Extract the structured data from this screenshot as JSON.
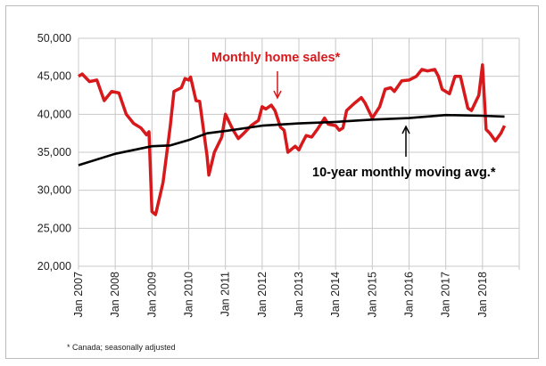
{
  "chart_data": {
    "type": "line",
    "title": "",
    "xlabel": "",
    "ylabel": "",
    "ylim": [
      20000,
      50000
    ],
    "xlim": [
      2007,
      2019
    ],
    "yticks": [
      "20,000",
      "25,000",
      "30,000",
      "35,000",
      "40,000",
      "45,000",
      "50,000"
    ],
    "ytick_values": [
      20000,
      25000,
      30000,
      35000,
      40000,
      45000,
      50000
    ],
    "xticks": [
      "Jan 2007",
      "Jan 2008",
      "Jan 2009",
      "Jan 2010",
      "Jan 2011",
      "Jan 2012",
      "Jan 2013",
      "Jan 2014",
      "Jan 2015",
      "Jan 2016",
      "Jan 2017",
      "Jan 2018"
    ],
    "grid": true,
    "series": [
      {
        "name": "Monthly home sales*",
        "color": "#d7191c",
        "x": [
          2007.0,
          2007.1,
          2007.3,
          2007.5,
          2007.7,
          2007.9,
          2008.1,
          2008.3,
          2008.5,
          2008.7,
          2008.85,
          2008.92,
          2009.0,
          2009.1,
          2009.3,
          2009.5,
          2009.6,
          2009.8,
          2009.9,
          2010.0,
          2010.05,
          2010.2,
          2010.3,
          2010.5,
          2010.55,
          2010.7,
          2010.9,
          2011.0,
          2011.2,
          2011.35,
          2011.5,
          2011.7,
          2011.9,
          2012.0,
          2012.1,
          2012.25,
          2012.35,
          2012.5,
          2012.6,
          2012.7,
          2012.9,
          2013.0,
          2013.1,
          2013.2,
          2013.35,
          2013.5,
          2013.7,
          2013.8,
          2014.0,
          2014.1,
          2014.2,
          2014.3,
          2014.5,
          2014.7,
          2014.8,
          2015.0,
          2015.2,
          2015.35,
          2015.5,
          2015.6,
          2015.8,
          2016.0,
          2016.2,
          2016.35,
          2016.5,
          2016.7,
          2016.8,
          2016.9,
          2017.0,
          2017.1,
          2017.25,
          2017.4,
          2017.6,
          2017.7,
          2017.8,
          2017.9,
          2018.0,
          2018.1,
          2018.2,
          2018.35,
          2018.5,
          2018.6
        ],
        "values": [
          45000,
          45300,
          44300,
          44500,
          41800,
          43000,
          42800,
          40000,
          38800,
          38200,
          37300,
          37700,
          27200,
          26800,
          31000,
          38500,
          43000,
          43500,
          44700,
          44500,
          44900,
          41800,
          41700,
          34500,
          32000,
          35000,
          37000,
          40000,
          38000,
          36800,
          37500,
          38500,
          39200,
          41000,
          40700,
          41200,
          40500,
          38300,
          37900,
          35000,
          35800,
          35300,
          36300,
          37200,
          37000,
          38000,
          39500,
          38700,
          38500,
          37900,
          38200,
          40500,
          41400,
          42200,
          41500,
          39500,
          41000,
          43300,
          43500,
          43000,
          44400,
          44500,
          45000,
          45900,
          45700,
          45900,
          45000,
          43300,
          43000,
          42700,
          45000,
          45000,
          40800,
          40500,
          41500,
          42500,
          46500,
          38000,
          37500,
          36500,
          37500,
          38500
        ]
      },
      {
        "name": "10-year monthly moving avg.*",
        "color": "#000000",
        "x": [
          2007.0,
          2008.0,
          2009.0,
          2009.5,
          2010.0,
          2010.5,
          2011.0,
          2012.0,
          2013.0,
          2014.0,
          2015.0,
          2016.0,
          2017.0,
          2018.0,
          2018.6
        ],
        "values": [
          33300,
          34800,
          35800,
          35900,
          36600,
          37500,
          37800,
          38500,
          38800,
          39000,
          39300,
          39500,
          39900,
          39800,
          39700
        ]
      }
    ],
    "annotations": [
      "Monthly home sales*",
      "10-year monthly moving avg.*"
    ],
    "footnote": "* Canada; seasonally adjusted"
  }
}
